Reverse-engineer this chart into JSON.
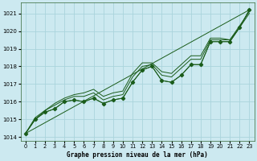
{
  "xlabel": "Graphe pression niveau de la mer (hPa)",
  "bg_color": "#cce9f0",
  "grid_color": "#aad4dc",
  "line_color": "#1a5c1a",
  "ylim": [
    1013.8,
    1021.6
  ],
  "xlim": [
    -0.5,
    23.5
  ],
  "yticks": [
    1014,
    1015,
    1016,
    1017,
    1018,
    1019,
    1020,
    1021
  ],
  "xticks": [
    0,
    1,
    2,
    3,
    4,
    5,
    6,
    7,
    8,
    9,
    10,
    11,
    12,
    13,
    14,
    15,
    16,
    17,
    18,
    19,
    20,
    21,
    22,
    23
  ],
  "series": [
    [
      1014.2,
      1015.0,
      1015.4,
      1015.6,
      1016.0,
      1016.1,
      1016.0,
      1016.2,
      1015.9,
      1016.1,
      1016.2,
      1017.1,
      1017.8,
      1018.0,
      1017.2,
      1017.1,
      1017.5,
      1018.1,
      1018.1,
      1019.4,
      1019.4,
      1019.4,
      1020.2,
      1021.2
    ],
    [
      1014.2,
      1015.0,
      1015.5,
      1015.8,
      1016.1,
      1016.3,
      1016.3,
      1016.5,
      1016.1,
      1016.3,
      1016.4,
      1017.4,
      1018.0,
      1018.1,
      1017.5,
      1017.4,
      1017.9,
      1018.4,
      1018.4,
      1019.5,
      1019.5,
      1019.5,
      1020.2,
      1021.0
    ],
    [
      1014.2,
      1015.1,
      1015.5,
      1015.9,
      1016.2,
      1016.4,
      1016.5,
      1016.7,
      1016.3,
      1016.5,
      1016.6,
      1017.6,
      1018.2,
      1018.2,
      1017.7,
      1017.6,
      1018.1,
      1018.6,
      1018.6,
      1019.6,
      1019.6,
      1019.5,
      1020.3,
      1021.1
    ]
  ],
  "marker_series": [
    1014.2,
    1015.0,
    1015.4,
    1015.6,
    1016.0,
    1016.1,
    1016.0,
    1016.2,
    1015.9,
    1016.1,
    1016.2,
    1017.1,
    1017.8,
    1018.0,
    1017.2,
    1017.1,
    1017.5,
    1018.1,
    1018.1,
    1019.4,
    1019.4,
    1019.4,
    1020.2,
    1021.2
  ],
  "straight_line": [
    1014.2,
    1021.2
  ],
  "straight_line_x": [
    0,
    23
  ]
}
